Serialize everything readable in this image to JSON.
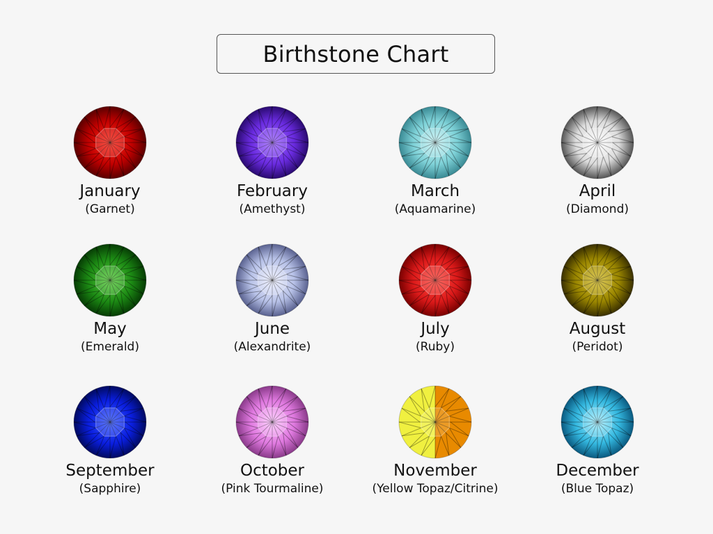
{
  "title": "Birthstone Chart",
  "stones": [
    {
      "month": "January",
      "stone": "(Garnet)",
      "colors": [
        "#ff2a1a",
        "#c00000",
        "#5a0000"
      ]
    },
    {
      "month": "February",
      "stone": "(Amethyst)",
      "colors": [
        "#a06bff",
        "#6a2be0",
        "#2a0a70"
      ]
    },
    {
      "month": "March",
      "stone": "(Aquamarine)",
      "colors": [
        "#c8f2f4",
        "#7fd2d8",
        "#3a8a94"
      ]
    },
    {
      "month": "April",
      "stone": "(Diamond)",
      "colors": [
        "#ffffff",
        "#dcdcdc",
        "#555555"
      ]
    },
    {
      "month": "May",
      "stone": "(Emerald)",
      "colors": [
        "#5cd040",
        "#1c8a14",
        "#063c04"
      ]
    },
    {
      "month": "June",
      "stone": "(Alexandrite)",
      "colors": [
        "#eef0ff",
        "#b8c2e8",
        "#5a6290"
      ]
    },
    {
      "month": "July",
      "stone": "(Ruby)",
      "colors": [
        "#ff4a40",
        "#dc1a1a",
        "#7a0000"
      ]
    },
    {
      "month": "August",
      "stone": "(Peridot)",
      "colors": [
        "#d8c030",
        "#9a8600",
        "#3a3000"
      ]
    },
    {
      "month": "September",
      "stone": "(Sapphire)",
      "colors": [
        "#3a5cff",
        "#0a1ee0",
        "#000a60"
      ]
    },
    {
      "month": "October",
      "stone": "(Pink Tourmaline)",
      "colors": [
        "#ffc8ff",
        "#e07ae0",
        "#8a3a8a"
      ]
    },
    {
      "month": "November",
      "stone": "(Yellow Topaz/Citrine)",
      "colors": [
        "#f0f040",
        "#e6c000",
        "#e88a00"
      ]
    },
    {
      "month": "December",
      "stone": "(Blue Topaz)",
      "colors": [
        "#a8f0ff",
        "#34b8e0",
        "#0a5a80"
      ]
    }
  ]
}
